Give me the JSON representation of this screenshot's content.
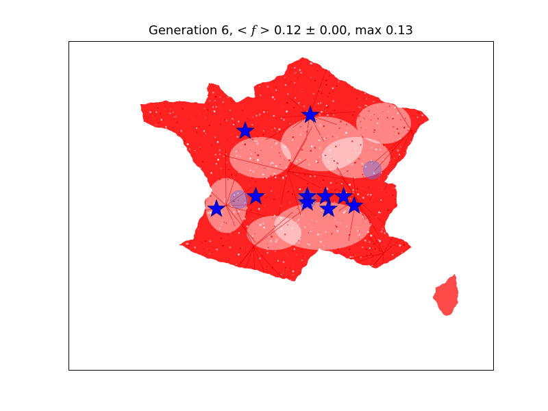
{
  "figure": {
    "title_prefix": "Generation 6,",
    "title_math": "< f >",
    "title_suffix": "0.12 ± 0.00, max 0.13"
  },
  "colors": {
    "density": "#ff0000",
    "star_fill": "#0000ff",
    "star_edge": "#000080",
    "halo": "#6f6fd8",
    "axes": "#000000",
    "background": "#ffffff"
  },
  "map": {
    "region": "France (mainland + Corsica)",
    "marker_icon": "star-icon",
    "star_count": 10,
    "halo_count": 3
  },
  "chart_data": {
    "type": "scatter",
    "title": "Generation 6, <f> 0.12 ± 0.00, max 0.13",
    "xlabel": "",
    "ylabel": "",
    "grid": false,
    "axis_ticks": false,
    "series": [
      {
        "marker": "star",
        "points": [
          {
            "lon": 2.35,
            "lat": 48.86
          },
          {
            "lon": 0.2,
            "lat": 48.35
          },
          {
            "lon": 0.55,
            "lat": 46.25
          },
          {
            "lon": -0.75,
            "lat": 45.85
          },
          {
            "lon": 2.25,
            "lat": 46.25
          },
          {
            "lon": 2.25,
            "lat": 46.05
          },
          {
            "lon": 2.85,
            "lat": 46.25
          },
          {
            "lon": 3.45,
            "lat": 46.25
          },
          {
            "lon": 3.8,
            "lat": 45.95
          },
          {
            "lon": 2.95,
            "lat": 45.85
          }
        ]
      },
      {
        "marker": "halo",
        "points": [
          {
            "lon": 0.0,
            "lat": 46.15
          },
          {
            "lon": 4.4,
            "lat": 47.1
          },
          {
            "lon": 2.25,
            "lat": 46.15
          }
        ]
      }
    ]
  }
}
